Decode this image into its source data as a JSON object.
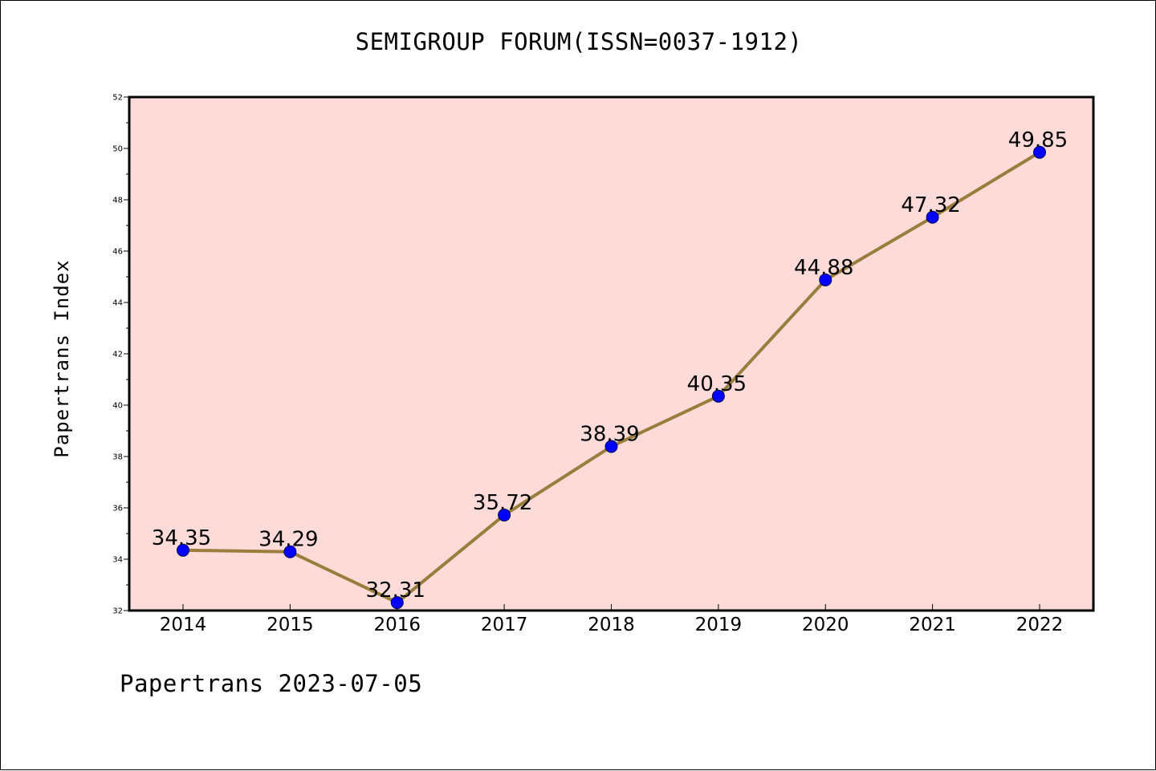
{
  "chart_data": {
    "type": "line",
    "title": "SEMIGROUP FORUM(ISSN=0037-1912)",
    "xlabel": "",
    "ylabel": "Papertrans Index",
    "categories": [
      "2014",
      "2015",
      "2016",
      "2017",
      "2018",
      "2019",
      "2020",
      "2021",
      "2022"
    ],
    "series": [
      {
        "values": [
          34.35,
          34.29,
          32.31,
          35.72,
          38.39,
          40.35,
          44.88,
          47.32,
          49.85
        ],
        "data_labels": [
          "34.35",
          "34.29",
          "32.31",
          "35.72",
          "38.39",
          "40.35",
          "44.88",
          "47.32",
          "49.85"
        ]
      }
    ],
    "ylim": [
      32,
      52
    ],
    "y_ticks": [
      "32",
      "34",
      "36",
      "38",
      "40",
      "42",
      "44",
      "46",
      "48",
      "50",
      "52"
    ],
    "grid": false,
    "colors": {
      "plot_background": "#fddbd8",
      "line": "#9a7d3c",
      "marker": "#0000ff"
    }
  },
  "footer": {
    "text": "Papertrans 2023-07-05"
  }
}
